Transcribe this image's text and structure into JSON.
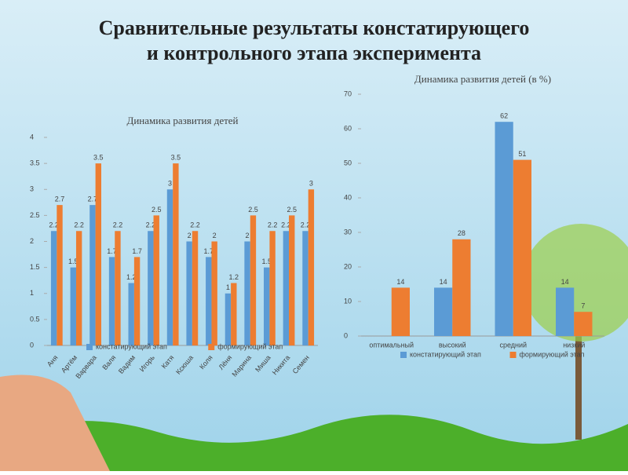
{
  "title": "Сравнительные результаты констатирующего и контрольного этапа эксперимента",
  "chart_data": [
    {
      "type": "bar",
      "title": "Динамика развития детей",
      "categories": [
        "Аня",
        "Артём",
        "Варвара",
        "Валя",
        "Вадим",
        "Игорь",
        "Катя",
        "Ксюша",
        "Коля",
        "Лёня",
        "Марина",
        "Миша",
        "Никита",
        "Семен"
      ],
      "series": [
        {
          "name": "констатирующий этап",
          "color": "#5b9bd5",
          "values": [
            2.2,
            1.5,
            2.7,
            1.7,
            1.2,
            2.2,
            3,
            2,
            1.7,
            1,
            2,
            1.5,
            2.2,
            2.2
          ]
        },
        {
          "name": "формирующий этап",
          "color": "#ed7d31",
          "values": [
            2.7,
            2.2,
            3.5,
            2.2,
            1.7,
            2.5,
            3.5,
            2.2,
            2,
            1.2,
            2.5,
            2.2,
            2.5,
            3
          ]
        }
      ],
      "ylim": [
        0,
        4
      ],
      "yticks": [
        0,
        0.5,
        1,
        1.5,
        2,
        2.5,
        3,
        3.5,
        4
      ],
      "legend": "bottom"
    },
    {
      "type": "bar",
      "title": "Динамика развития детей (в %)",
      "categories": [
        "оптимальный",
        "высокий",
        "средний",
        "низкий"
      ],
      "series": [
        {
          "name": "констатирующий этап",
          "color": "#5b9bd5",
          "values": [
            null,
            14,
            62,
            14
          ]
        },
        {
          "name": "формирующий этап",
          "color": "#ed7d31",
          "values": [
            14,
            28,
            51,
            7
          ]
        }
      ],
      "ylim": [
        0,
        70
      ],
      "yticks": [
        0,
        10,
        20,
        30,
        40,
        50,
        60,
        70
      ],
      "legend": "bottom"
    }
  ]
}
